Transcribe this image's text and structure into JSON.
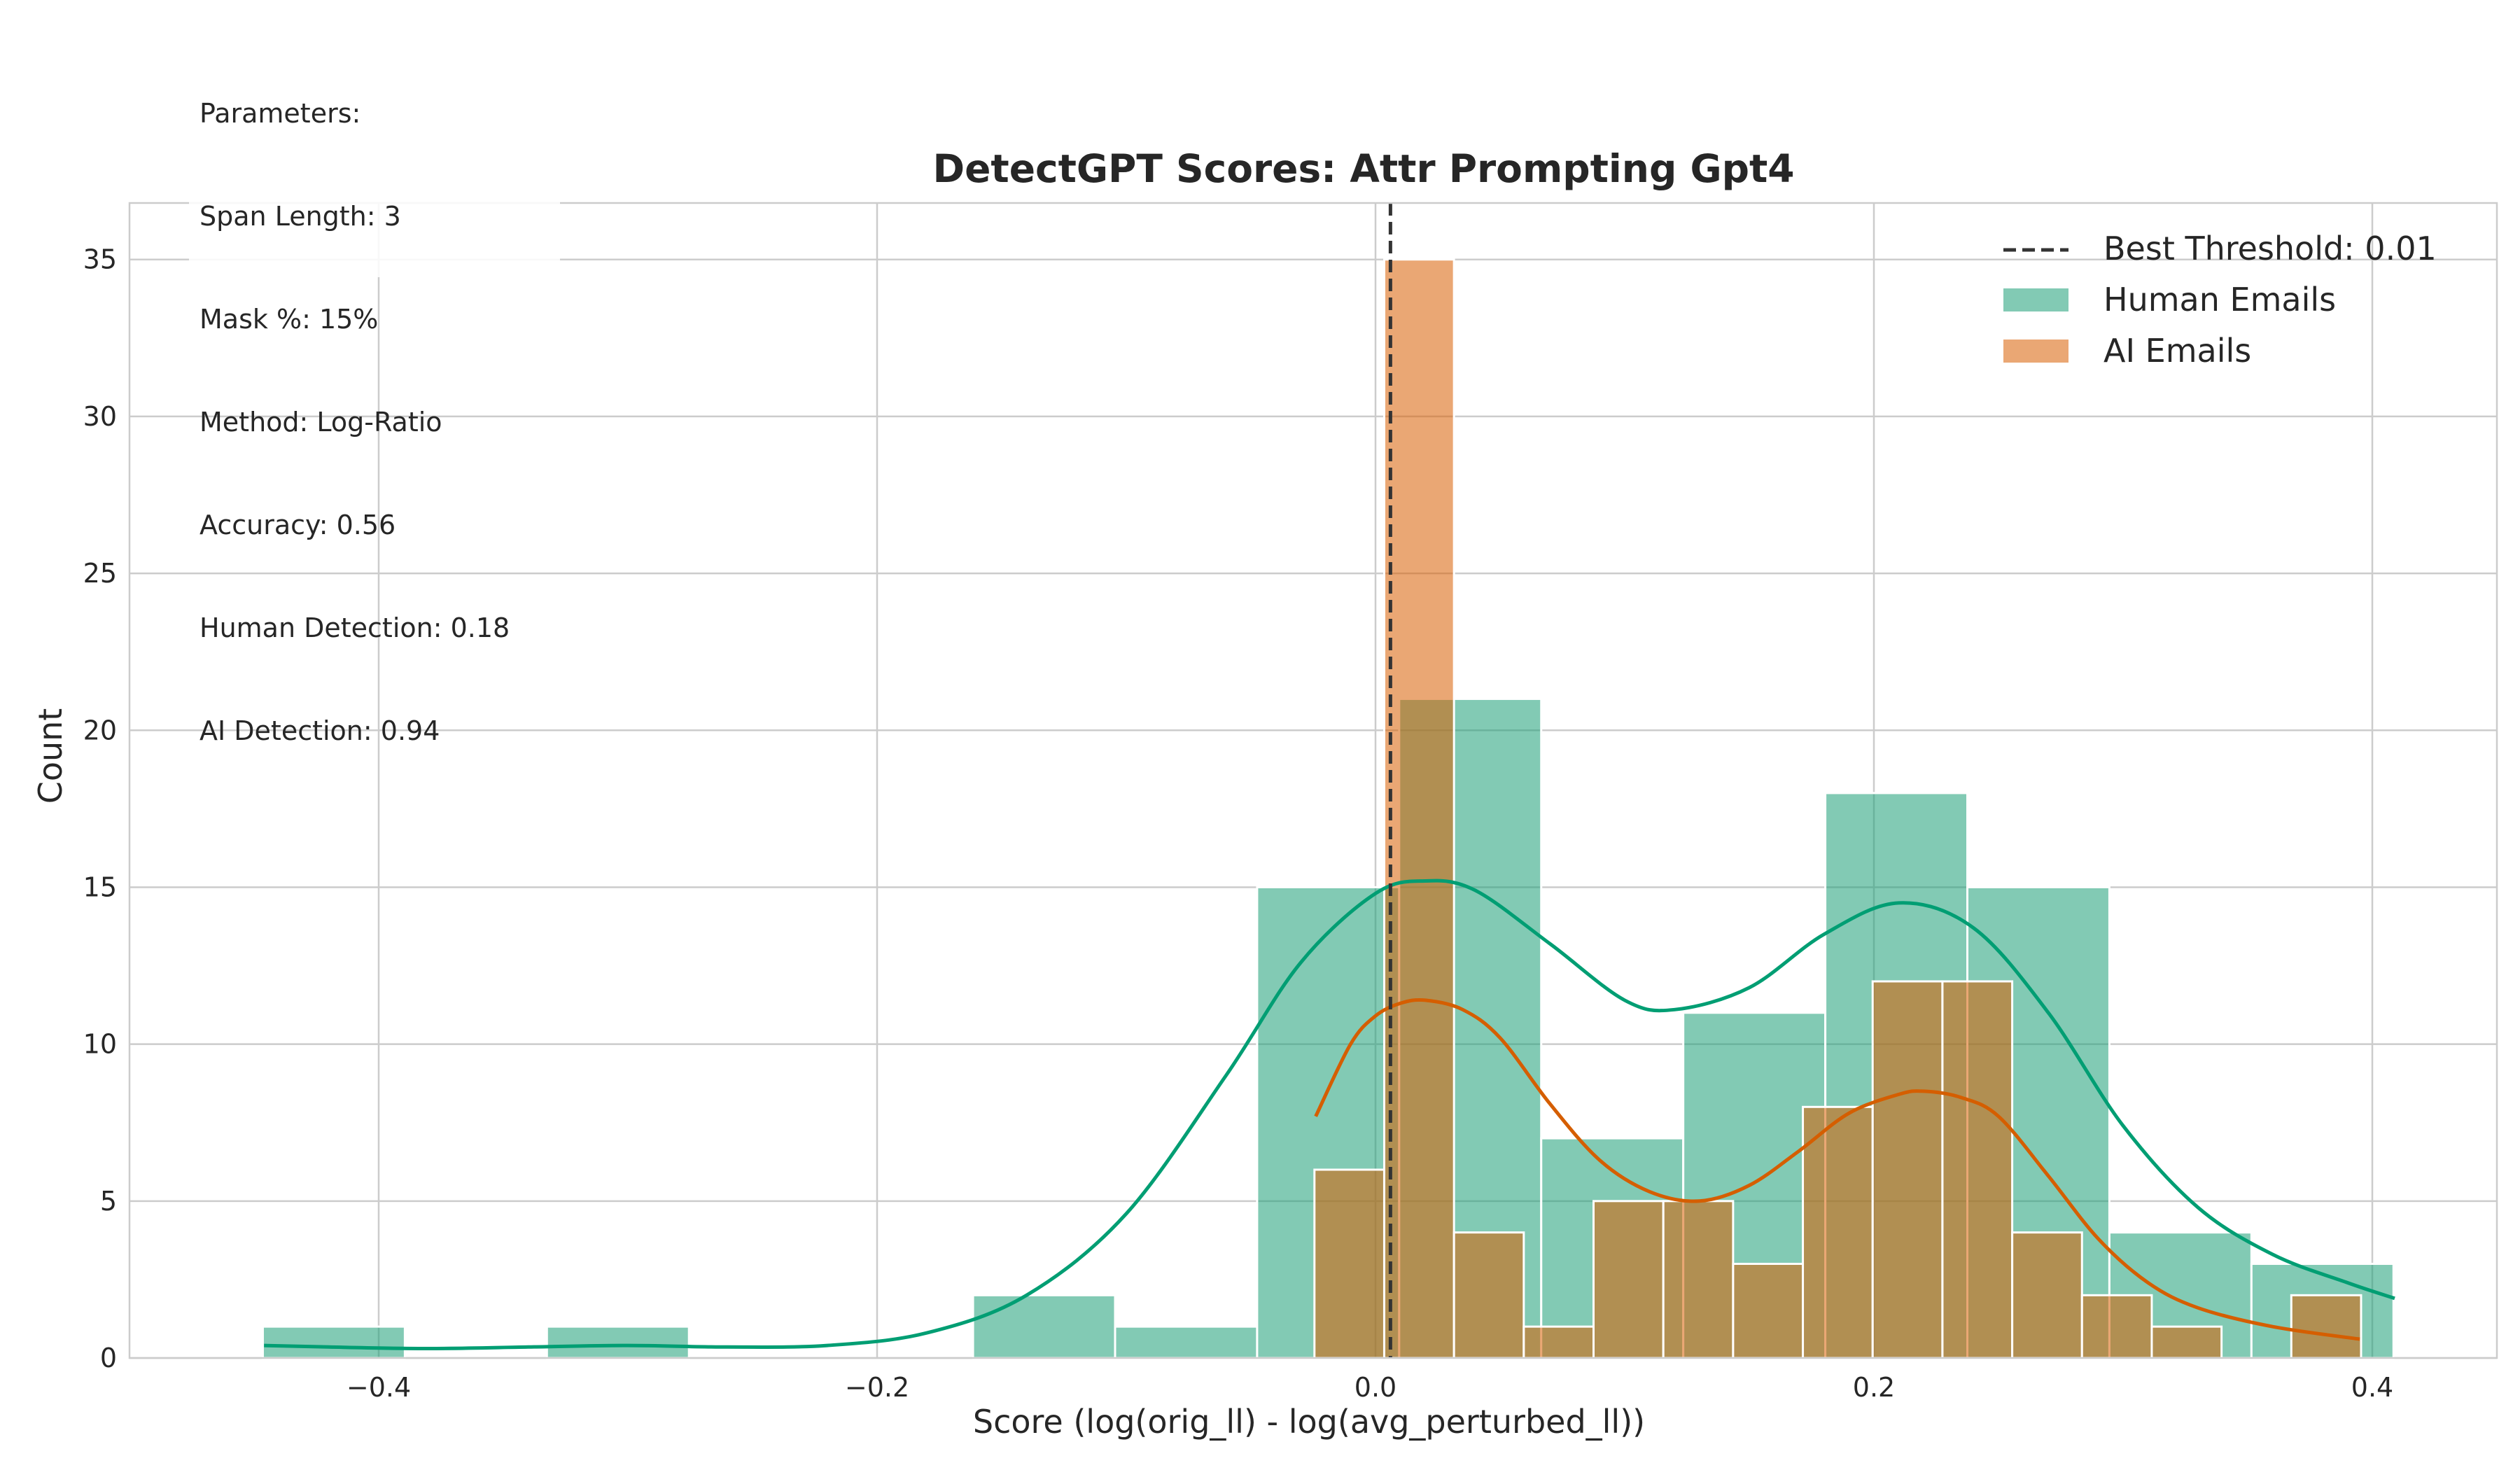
{
  "parameters": {
    "heading": "Parameters:",
    "span_length": "Span Length: 3",
    "mask": "Mask %: 15%",
    "method": "Method: Log-Ratio",
    "accuracy": "Accuracy: 0.56",
    "human_detection": "Human Detection: 0.18",
    "ai_detection": "AI Detection: 0.94"
  },
  "colors": {
    "human": "#1b9e77",
    "human_kde": "#009e73",
    "ai": "#d95f02",
    "ai_kde": "#d55e00",
    "threshold": "#333333",
    "grid": "#cccccc"
  },
  "chart_data": {
    "type": "histogram",
    "title": "DetectGPT Scores: Attr Prompting Gpt4",
    "xlabel": "Score (log(orig_ll) - log(avg_perturbed_ll))",
    "ylabel": "Count",
    "xlim": [
      -0.5,
      0.45
    ],
    "ylim": [
      0,
      36.8
    ],
    "xticks": [
      -0.4,
      -0.2,
      0.0,
      0.2,
      0.4
    ],
    "xtick_labels": [
      "−0.4",
      "−0.2",
      "0.0",
      "0.2",
      "0.4"
    ],
    "yticks": [
      0,
      5,
      10,
      15,
      20,
      25,
      30,
      35
    ],
    "ytick_labels": [
      "0",
      "5",
      "10",
      "15",
      "20",
      "25",
      "30",
      "35"
    ],
    "grid": true,
    "legend_position": "top-right",
    "threshold": {
      "name": "Best Threshold: 0.01",
      "x": 0.006
    },
    "series": [
      {
        "name": "Human Emails",
        "bins": [
          {
            "x0": -0.4465,
            "x1": -0.3895,
            "count": 1
          },
          {
            "x0": -0.3325,
            "x1": -0.2755,
            "count": 1
          },
          {
            "x0": -0.1615,
            "x1": -0.1045,
            "count": 2
          },
          {
            "x0": -0.1045,
            "x1": -0.0475,
            "count": 1
          },
          {
            "x0": -0.0475,
            "x1": 0.0095,
            "count": 15
          },
          {
            "x0": 0.0095,
            "x1": 0.0665,
            "count": 21
          },
          {
            "x0": 0.0665,
            "x1": 0.1235,
            "count": 7
          },
          {
            "x0": 0.1235,
            "x1": 0.1805,
            "count": 11
          },
          {
            "x0": 0.1805,
            "x1": 0.2375,
            "count": 18
          },
          {
            "x0": 0.2375,
            "x1": 0.2945,
            "count": 15
          },
          {
            "x0": 0.2945,
            "x1": 0.3515,
            "count": 4
          },
          {
            "x0": 0.3515,
            "x1": 0.4085,
            "count": 3
          }
        ],
        "kde": {
          "x": [
            -0.446,
            -0.42,
            -0.38,
            -0.34,
            -0.3,
            -0.26,
            -0.22,
            -0.18,
            -0.14,
            -0.1,
            -0.06,
            -0.03,
            0.0,
            0.02,
            0.04,
            0.07,
            0.1,
            0.12,
            0.15,
            0.18,
            0.21,
            0.24,
            0.27,
            0.3,
            0.33,
            0.36,
            0.39,
            0.409
          ],
          "y": [
            0.4,
            0.35,
            0.3,
            0.35,
            0.4,
            0.35,
            0.4,
            0.8,
            2.0,
            4.6,
            9.0,
            12.6,
            14.8,
            15.2,
            14.9,
            13.2,
            11.4,
            11.1,
            11.8,
            13.5,
            14.5,
            13.7,
            11.0,
            7.4,
            4.8,
            3.3,
            2.4,
            1.9
          ]
        }
      },
      {
        "name": "AI Emails",
        "bins": [
          {
            "x0": -0.0245,
            "x1": 0.0035,
            "count": 6
          },
          {
            "x0": 0.0035,
            "x1": 0.0315,
            "count": 35
          },
          {
            "x0": 0.0315,
            "x1": 0.0595,
            "count": 4
          },
          {
            "x0": 0.0595,
            "x1": 0.0875,
            "count": 1
          },
          {
            "x0": 0.0875,
            "x1": 0.1155,
            "count": 5
          },
          {
            "x0": 0.1155,
            "x1": 0.1435,
            "count": 5
          },
          {
            "x0": 0.1435,
            "x1": 0.1715,
            "count": 3
          },
          {
            "x0": 0.1715,
            "x1": 0.1995,
            "count": 8
          },
          {
            "x0": 0.1995,
            "x1": 0.2275,
            "count": 12
          },
          {
            "x0": 0.2275,
            "x1": 0.2555,
            "count": 12
          },
          {
            "x0": 0.2555,
            "x1": 0.2835,
            "count": 4
          },
          {
            "x0": 0.2835,
            "x1": 0.3115,
            "count": 2
          },
          {
            "x0": 0.3115,
            "x1": 0.3395,
            "count": 1
          },
          {
            "x0": 0.3395,
            "x1": 0.3675,
            "count": 0
          },
          {
            "x0": 0.3675,
            "x1": 0.3955,
            "count": 2
          }
        ],
        "kde": {
          "x": [
            -0.024,
            -0.01,
            0.0,
            0.01,
            0.02,
            0.035,
            0.05,
            0.07,
            0.09,
            0.11,
            0.13,
            0.15,
            0.17,
            0.19,
            0.21,
            0.22,
            0.235,
            0.25,
            0.27,
            0.29,
            0.31,
            0.33,
            0.36,
            0.395
          ],
          "y": [
            7.7,
            10.0,
            10.9,
            11.3,
            11.4,
            11.1,
            10.2,
            8.1,
            6.3,
            5.3,
            5.0,
            5.5,
            6.6,
            7.8,
            8.4,
            8.5,
            8.3,
            7.7,
            5.8,
            3.8,
            2.4,
            1.6,
            1.0,
            0.6
          ]
        }
      }
    ]
  }
}
